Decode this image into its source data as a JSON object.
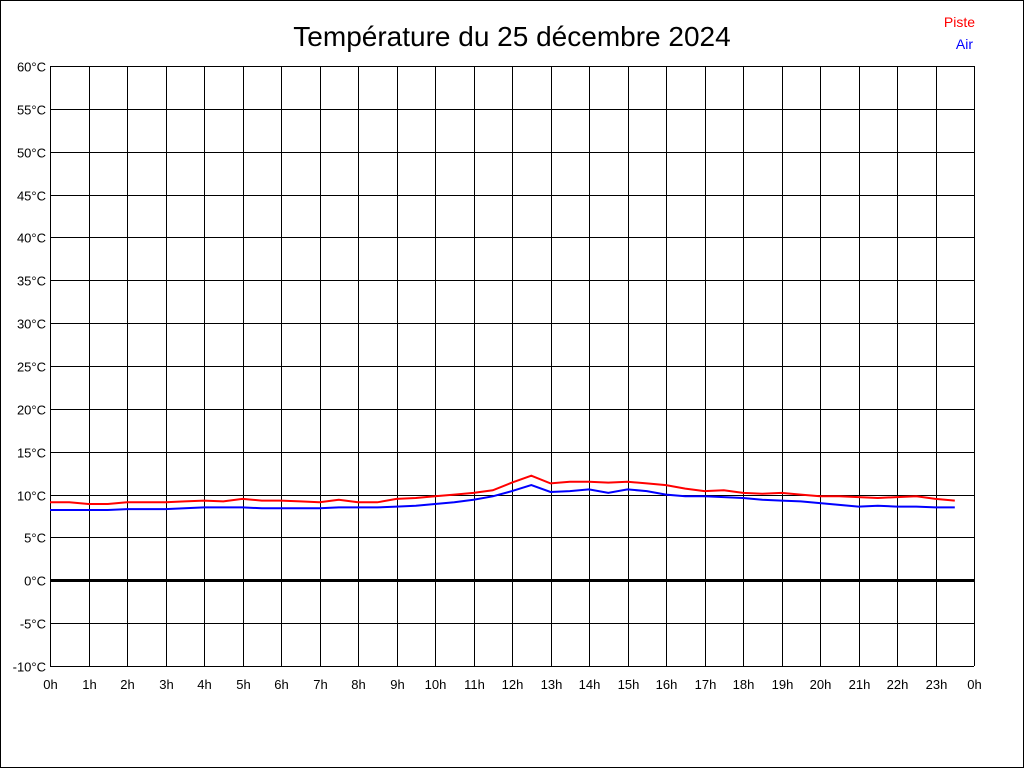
{
  "chart_data": {
    "type": "line",
    "title": "Température du 25 décembre 2024",
    "xlabel": "",
    "ylabel": "",
    "xlim": [
      0,
      24
    ],
    "ylim": [
      -10,
      60
    ],
    "grid": true,
    "legend_position": "top-right",
    "x_tick_labels": [
      "0h",
      "1h",
      "2h",
      "3h",
      "4h",
      "5h",
      "6h",
      "7h",
      "8h",
      "9h",
      "10h",
      "11h",
      "12h",
      "13h",
      "14h",
      "15h",
      "16h",
      "17h",
      "18h",
      "19h",
      "20h",
      "21h",
      "22h",
      "23h",
      "0h"
    ],
    "y_ticks": [
      -10,
      -5,
      0,
      5,
      10,
      15,
      20,
      25,
      30,
      35,
      40,
      45,
      50,
      55,
      60
    ],
    "y_tick_labels": [
      "-10°C",
      "-5°C",
      "0°C",
      "5°C",
      "10°C",
      "15°C",
      "20°C",
      "25°C",
      "30°C",
      "35°C",
      "40°C",
      "45°C",
      "50°C",
      "55°C",
      "60°C"
    ],
    "x": [
      0,
      0.5,
      1,
      1.5,
      2,
      2.5,
      3,
      3.5,
      4,
      4.5,
      5,
      5.5,
      6,
      6.5,
      7,
      7.5,
      8,
      8.5,
      9,
      9.5,
      10,
      10.5,
      11,
      11.5,
      12,
      12.5,
      13,
      13.5,
      14,
      14.5,
      15,
      15.5,
      16,
      16.5,
      17,
      17.5,
      18,
      18.5,
      19,
      19.5,
      20,
      20.5,
      21,
      21.5,
      22,
      22.5,
      23,
      23.5
    ],
    "series": [
      {
        "name": "Piste",
        "color": "#ff0000",
        "values": [
          9.1,
          9.1,
          8.9,
          8.9,
          9.1,
          9.1,
          9.1,
          9.2,
          9.3,
          9.2,
          9.5,
          9.3,
          9.3,
          9.2,
          9.1,
          9.4,
          9.1,
          9.1,
          9.5,
          9.6,
          9.8,
          10.0,
          10.2,
          10.5,
          11.4,
          12.2,
          11.3,
          11.5,
          11.5,
          11.4,
          11.5,
          11.3,
          11.1,
          10.7,
          10.4,
          10.5,
          10.2,
          10.1,
          10.2,
          10.0,
          9.8,
          9.8,
          9.7,
          9.6,
          9.7,
          9.8,
          9.5,
          9.3
        ]
      },
      {
        "name": "Air",
        "color": "#0000ff",
        "values": [
          8.2,
          8.2,
          8.2,
          8.2,
          8.3,
          8.3,
          8.3,
          8.4,
          8.5,
          8.5,
          8.5,
          8.4,
          8.4,
          8.4,
          8.4,
          8.5,
          8.5,
          8.5,
          8.6,
          8.7,
          8.9,
          9.1,
          9.4,
          9.8,
          10.4,
          11.1,
          10.3,
          10.4,
          10.6,
          10.2,
          10.6,
          10.4,
          10.0,
          9.8,
          9.8,
          9.7,
          9.6,
          9.4,
          9.3,
          9.2,
          9.0,
          8.8,
          8.6,
          8.7,
          8.6,
          8.6,
          8.5,
          8.5
        ]
      }
    ]
  }
}
